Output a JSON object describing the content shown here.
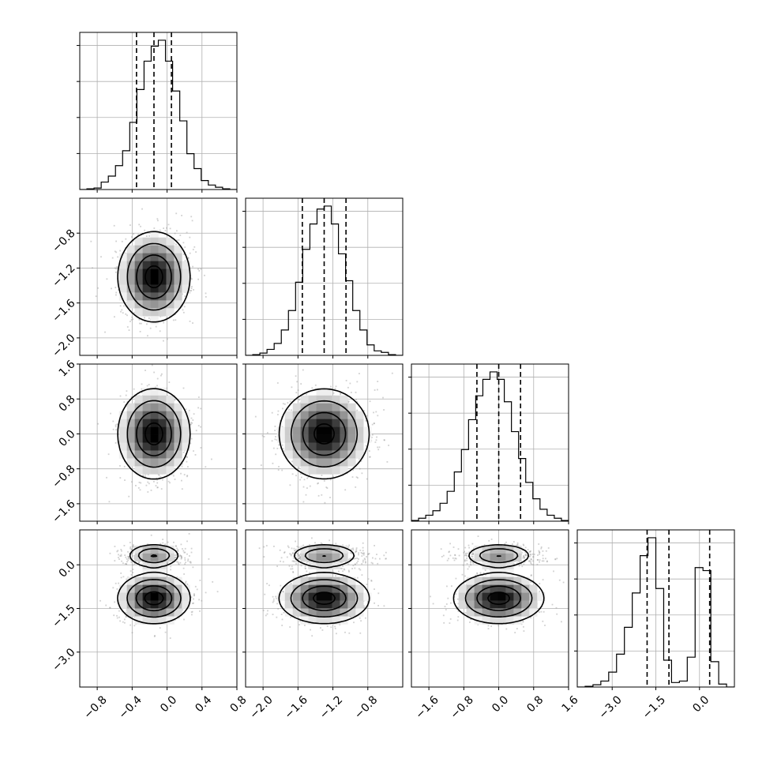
{
  "chart_data": {
    "type": "corner",
    "grid": true,
    "parameters": [
      {
        "range": [
          -1.0,
          0.8
        ],
        "ticks": [
          -0.8,
          -0.4,
          0.0,
          0.4,
          0.8
        ],
        "tick_labels": [
          "−0.8",
          "−0.4",
          "0.0",
          "0.4",
          "0.8"
        ],
        "quantiles": [
          -0.35,
          -0.15,
          0.05
        ],
        "histogram": [
          0.0,
          0.005,
          0.01,
          0.05,
          0.09,
          0.16,
          0.26,
          0.45,
          0.67,
          0.86,
          0.96,
          1.0,
          0.86,
          0.66,
          0.46,
          0.24,
          0.14,
          0.06,
          0.03,
          0.015,
          0.005,
          0.0
        ]
      },
      {
        "range": [
          -2.2,
          -0.4
        ],
        "ticks": [
          -2.0,
          -1.6,
          -1.2,
          -0.8
        ],
        "tick_labels": [
          "−2.0",
          "−1.6",
          "−1.2",
          "−0.8"
        ],
        "quantiles": [
          -1.55,
          -1.3,
          -1.05
        ],
        "histogram": [
          0.0,
          0.005,
          0.015,
          0.04,
          0.08,
          0.17,
          0.3,
          0.49,
          0.71,
          0.88,
          0.98,
          1.0,
          0.88,
          0.68,
          0.5,
          0.3,
          0.17,
          0.07,
          0.03,
          0.02,
          0.005,
          0.0
        ]
      },
      {
        "range": [
          -2.0,
          1.6
        ],
        "ticks": [
          -1.6,
          -0.8,
          0.0,
          0.8,
          1.6
        ],
        "tick_labels": [
          "−1.6",
          "−0.8",
          "0.0",
          "0.8",
          "1.6"
        ],
        "quantiles": [
          -0.5,
          0.0,
          0.5
        ],
        "histogram": [
          0.005,
          0.02,
          0.04,
          0.07,
          0.12,
          0.2,
          0.33,
          0.48,
          0.68,
          0.84,
          0.95,
          1.0,
          0.95,
          0.8,
          0.6,
          0.42,
          0.26,
          0.15,
          0.08,
          0.04,
          0.02,
          0.005
        ]
      },
      {
        "range": [
          -4.2,
          1.2
        ],
        "ticks": [
          -3.0,
          -1.5,
          0.0
        ],
        "tick_labels": [
          "−3.0",
          "−1.5",
          "0.0"
        ],
        "quantiles": [
          -1.8,
          -1.05,
          0.35
        ],
        "histogram": [
          0.0,
          0.005,
          0.015,
          0.04,
          0.1,
          0.22,
          0.4,
          0.63,
          0.88,
          1.0,
          0.66,
          0.18,
          0.03,
          0.04,
          0.2,
          0.8,
          0.78,
          0.17,
          0.02,
          0.0
        ]
      }
    ],
    "y_tick_labels": {
      "1": [
        "−0.8",
        "−1.2",
        "−1.6",
        "−2.0"
      ],
      "2": [
        "1.6",
        "0.8",
        "0.0",
        "−0.8",
        "−1.6"
      ],
      "3": [
        "0.0",
        "−1.5",
        "−3.0"
      ]
    },
    "hist_y_max_fraction": 0.95,
    "contour_levels": [
      1.0,
      0.6,
      0.3,
      0.12
    ],
    "colors": {
      "line": "#000000",
      "grid": "#b0b0b0",
      "density_max": "#000000",
      "scatter": "#9a9a9a"
    }
  }
}
